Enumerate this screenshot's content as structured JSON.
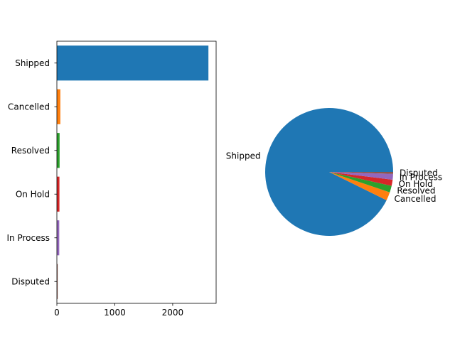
{
  "chart_data": [
    {
      "type": "bar",
      "orientation": "horizontal",
      "categories": [
        "Shipped",
        "Cancelled",
        "Resolved",
        "On Hold",
        "In Process",
        "Disputed"
      ],
      "values": [
        2617,
        60,
        47,
        44,
        41,
        14
      ],
      "colors": [
        "#1f77b4",
        "#ff7f0e",
        "#2ca02c",
        "#d62728",
        "#9467bd",
        "#8c564b"
      ],
      "xlim": [
        0,
        2750
      ],
      "xticks": [
        0,
        1000,
        2000
      ],
      "xtick_labels": [
        "0",
        "1000",
        "2000"
      ],
      "title": "",
      "xlabel": "",
      "ylabel": "",
      "grid": false
    },
    {
      "type": "pie",
      "labels": [
        "Shipped",
        "Cancelled",
        "Resolved",
        "On Hold",
        "In Process",
        "Disputed"
      ],
      "values": [
        2617,
        60,
        47,
        44,
        41,
        14
      ],
      "colors": [
        "#1f77b4",
        "#ff7f0e",
        "#2ca02c",
        "#d62728",
        "#9467bd",
        "#8c564b"
      ],
      "start_angle_deg": 0,
      "direction": "counterclockwise",
      "title": ""
    }
  ]
}
